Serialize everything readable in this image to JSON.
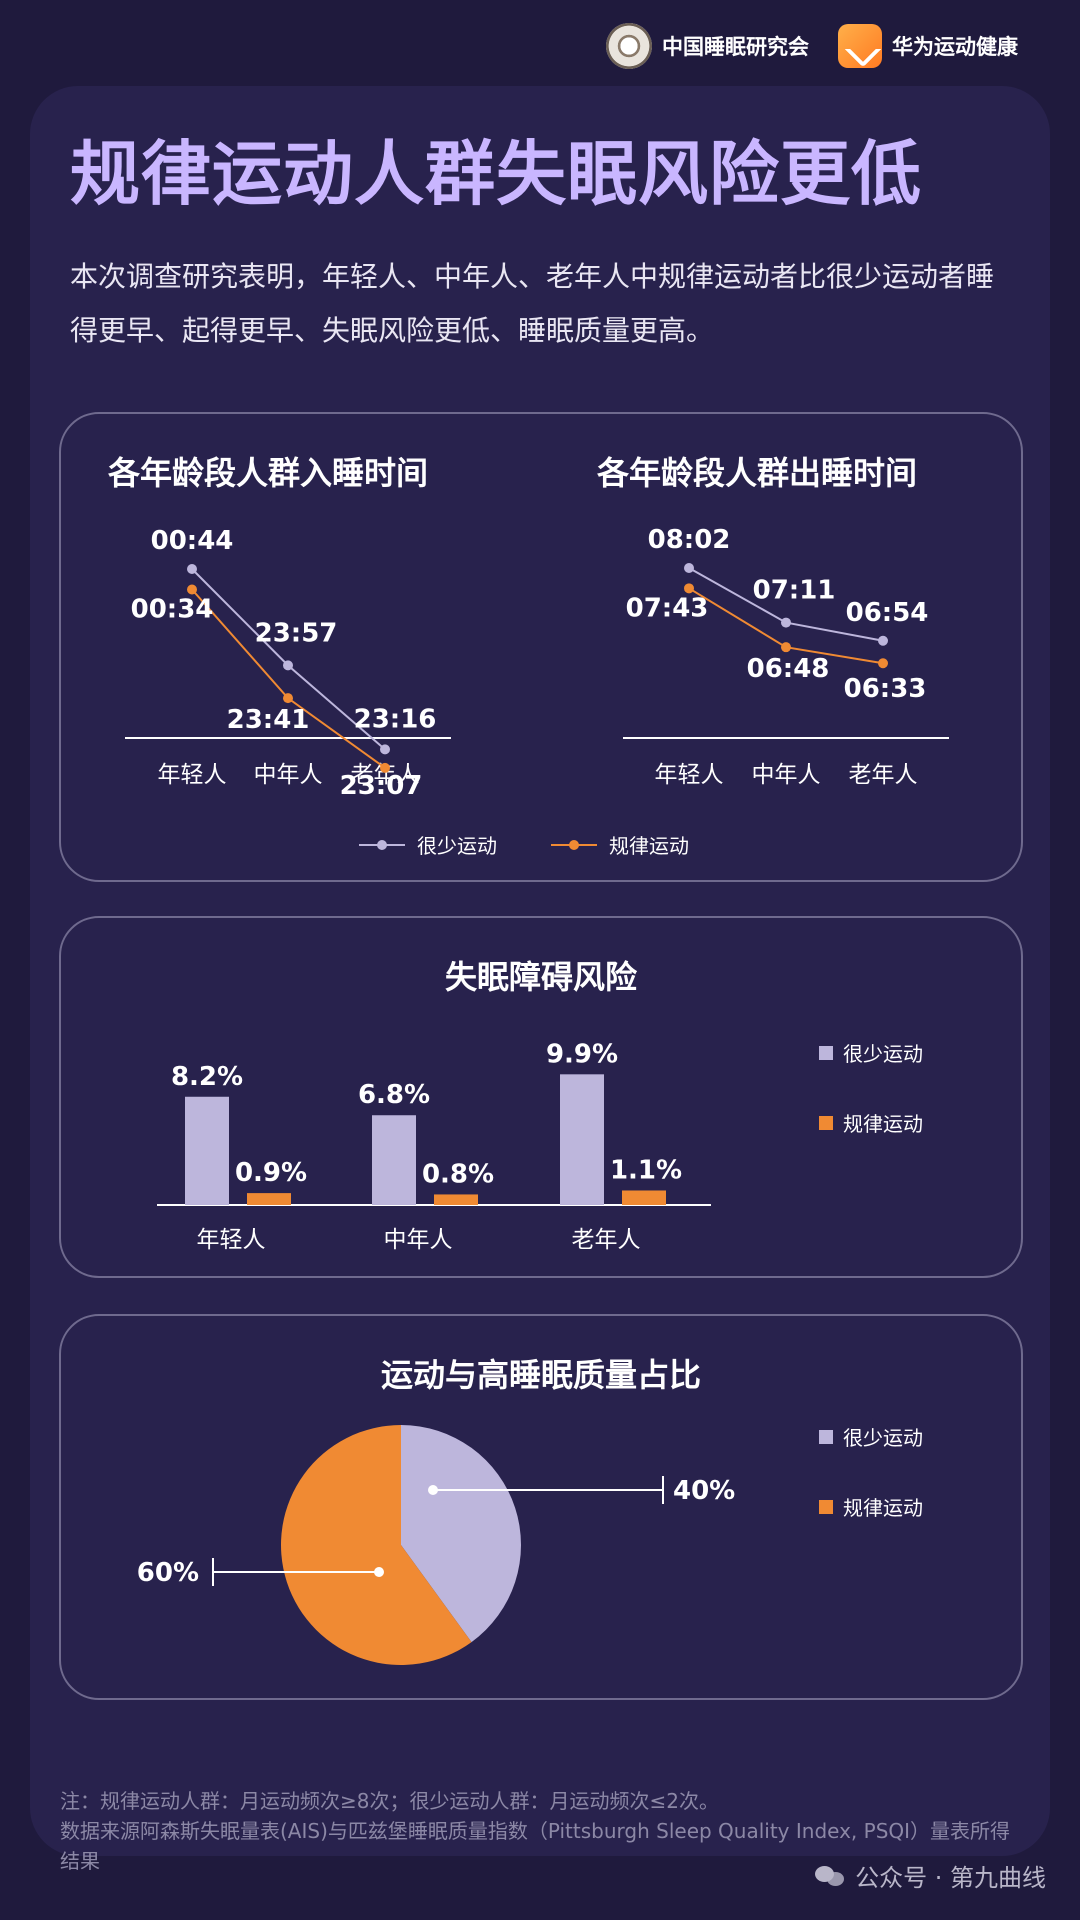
{
  "header": {
    "org1": "中国睡眠研究会",
    "org2": "华为运动健康"
  },
  "title": "规律运动人群失眠风险更低",
  "intro": "本次调查研究表明，年轻人、中年人、老年人中规律运动者比很少运动者睡得更早、起得更早、失眠风险更低、睡眠质量更高。",
  "colors": {
    "rare": "#bdb6dc",
    "regular": "#f08a33",
    "background": "#1f1a3d",
    "panel": "#28224d"
  },
  "legend": {
    "rare": "很少运动",
    "regular": "规律运动"
  },
  "chart_data": [
    {
      "type": "line",
      "title": "各年龄段人群入睡时间",
      "categories": [
        "年轻人",
        "中年人",
        "老年人"
      ],
      "series": [
        {
          "name": "很少运动",
          "values": [
            "00:44",
            "23:57",
            "23:16"
          ]
        },
        {
          "name": "规律运动",
          "values": [
            "00:34",
            "23:41",
            "23:07"
          ]
        }
      ]
    },
    {
      "type": "line",
      "title": "各年龄段人群出睡时间",
      "categories": [
        "年轻人",
        "中年人",
        "老年人"
      ],
      "series": [
        {
          "name": "很少运动",
          "values": [
            "08:02",
            "07:11",
            "06:54"
          ]
        },
        {
          "name": "规律运动",
          "values": [
            "07:43",
            "06:48",
            "06:33"
          ]
        }
      ]
    },
    {
      "type": "bar",
      "title": "失眠障碍风险",
      "categories": [
        "年轻人",
        "中年人",
        "老年人"
      ],
      "series": [
        {
          "name": "很少运动",
          "values": [
            8.2,
            6.8,
            9.9
          ],
          "labels": [
            "8.2%",
            "6.8%",
            "9.9%"
          ]
        },
        {
          "name": "规律运动",
          "values": [
            0.9,
            0.8,
            1.1
          ],
          "labels": [
            "0.9%",
            "0.8%",
            "1.1%"
          ]
        }
      ],
      "legend_position": "right"
    },
    {
      "type": "pie",
      "title": "运动与高睡眠质量占比",
      "slices": [
        {
          "name": "很少运动",
          "value": 40,
          "label": "40%"
        },
        {
          "name": "规律运动",
          "value": 60,
          "label": "60%"
        }
      ],
      "legend_position": "right"
    }
  ],
  "footnote": {
    "line1": "注：规律运动人群：月运动频次≥8次；很少运动人群：月运动频次≤2次。",
    "line2": "数据来源阿森斯失眠量表(AIS)与匹兹堡睡眠质量指数（Pittsburgh Sleep Quality Index, PSQI）量表所得结果"
  },
  "watermark": "公众号 · 第九曲线"
}
